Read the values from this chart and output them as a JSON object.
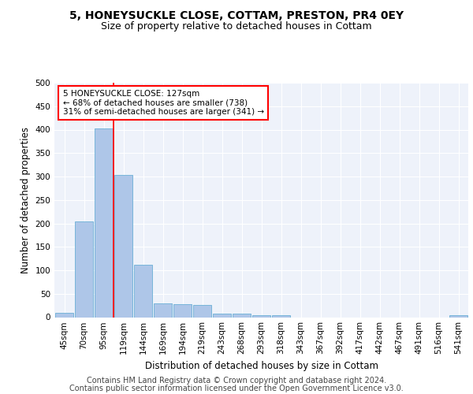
{
  "title": "5, HONEYSUCKLE CLOSE, COTTAM, PRESTON, PR4 0EY",
  "subtitle": "Size of property relative to detached houses in Cottam",
  "xlabel": "Distribution of detached houses by size in Cottam",
  "ylabel": "Number of detached properties",
  "bar_labels": [
    "45sqm",
    "70sqm",
    "95sqm",
    "119sqm",
    "144sqm",
    "169sqm",
    "194sqm",
    "219sqm",
    "243sqm",
    "268sqm",
    "293sqm",
    "318sqm",
    "343sqm",
    "367sqm",
    "392sqm",
    "417sqm",
    "442sqm",
    "467sqm",
    "491sqm",
    "516sqm",
    "541sqm"
  ],
  "bar_values": [
    10,
    205,
    403,
    303,
    112,
    30,
    27,
    26,
    8,
    7,
    5,
    4,
    0,
    0,
    0,
    0,
    0,
    0,
    0,
    0,
    5
  ],
  "bar_color": "#aec6e8",
  "bar_edge_color": "#6aafd6",
  "vline_x": 3.0,
  "vline_color": "red",
  "annotation_box_text": "5 HONEYSUCKLE CLOSE: 127sqm\n← 68% of detached houses are smaller (738)\n31% of semi-detached houses are larger (341) →",
  "ylim": [
    0,
    500
  ],
  "yticks": [
    0,
    50,
    100,
    150,
    200,
    250,
    300,
    350,
    400,
    450,
    500
  ],
  "footer_line1": "Contains HM Land Registry data © Crown copyright and database right 2024.",
  "footer_line2": "Contains public sector information licensed under the Open Government Licence v3.0.",
  "bg_color": "#eef2fa",
  "title_fontsize": 10,
  "subtitle_fontsize": 9,
  "axis_label_fontsize": 8.5,
  "tick_fontsize": 7.5,
  "footer_fontsize": 7
}
